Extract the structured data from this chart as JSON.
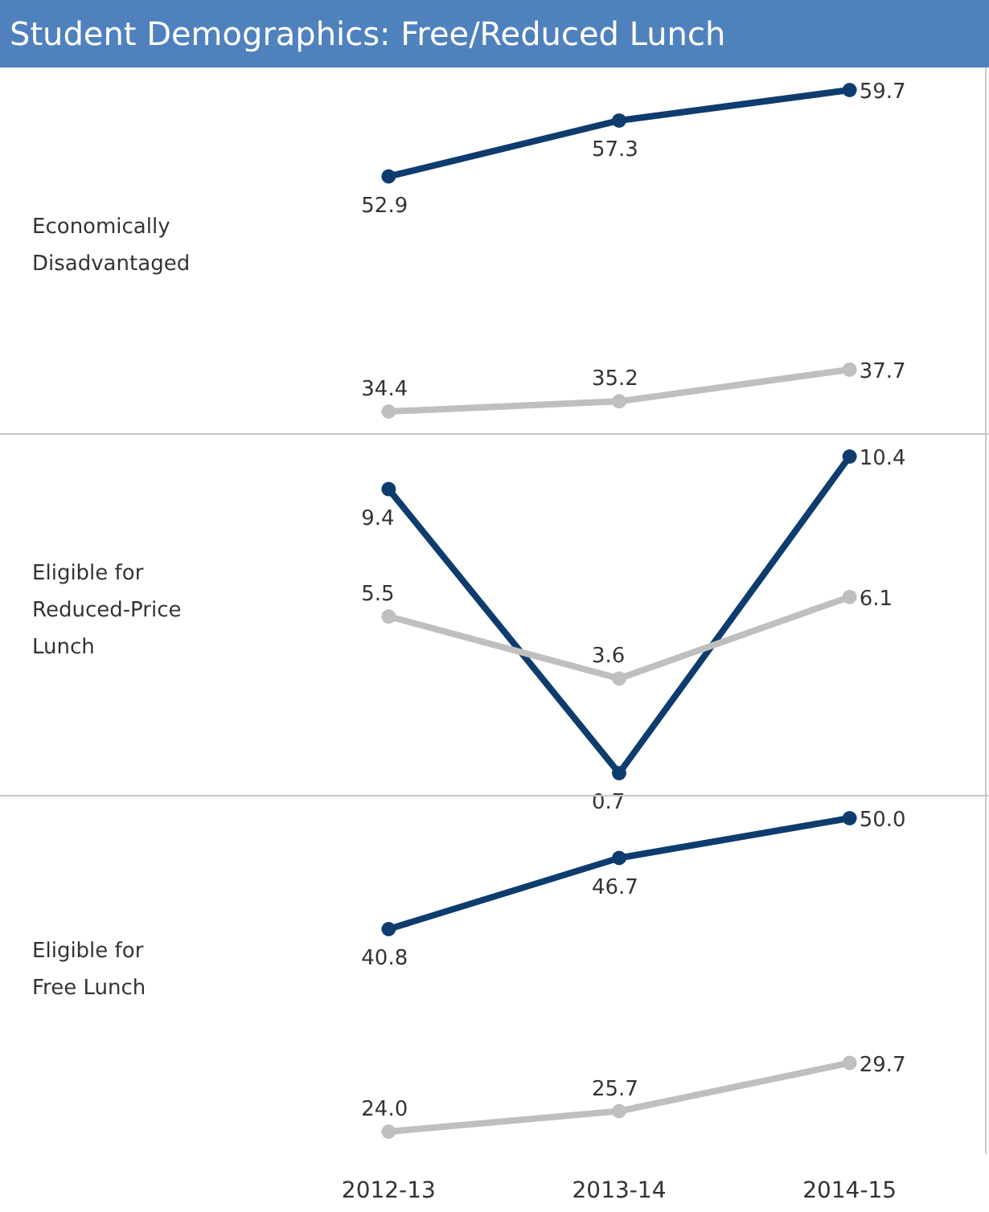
{
  "chart_data": [
    {
      "type": "line",
      "title": "Student Demographics: Free/Reduced Lunch",
      "ylabel": "Economically Disadvantaged",
      "categories": [
        "2012-13",
        "2013-14",
        "2014-15"
      ],
      "tick_labels": false,
      "marker": "circle",
      "series": [
        {
          "color": "#0e3c6e",
          "values": [
            52.9,
            57.3,
            59.7
          ],
          "value_labels": [
            "52.9",
            "57.3",
            "59.7"
          ]
        },
        {
          "color": "#bfbfbf",
          "values": [
            34.4,
            35.2,
            37.7
          ],
          "value_labels": [
            "34.4",
            "35.2",
            "37.7"
          ]
        }
      ]
    },
    {
      "type": "line",
      "ylabel": "Eligible for Reduced-Price Lunch",
      "categories": [
        "2012-13",
        "2013-14",
        "2014-15"
      ],
      "tick_labels": false,
      "marker": "circle",
      "series": [
        {
          "color": "#0e3c6e",
          "values": [
            9.4,
            0.7,
            10.4
          ],
          "value_labels": [
            "9.4",
            "0.7",
            "10.4"
          ]
        },
        {
          "color": "#bfbfbf",
          "values": [
            5.5,
            3.6,
            6.1
          ],
          "value_labels": [
            "5.5",
            "3.6",
            "6.1"
          ]
        }
      ]
    },
    {
      "type": "line",
      "ylabel": "Eligible for Free Lunch",
      "categories": [
        "2012-13",
        "2013-14",
        "2014-15"
      ],
      "tick_labels": "x",
      "marker": "circle",
      "series": [
        {
          "color": "#0e3c6e",
          "values": [
            40.8,
            46.7,
            50
          ],
          "value_labels": [
            "40.8",
            "46.7",
            "50.0"
          ]
        },
        {
          "color": "#bfbfbf",
          "values": [
            24,
            25.7,
            29.7
          ],
          "value_labels": [
            "24.0",
            "25.7",
            "29.7"
          ]
        }
      ]
    }
  ]
}
